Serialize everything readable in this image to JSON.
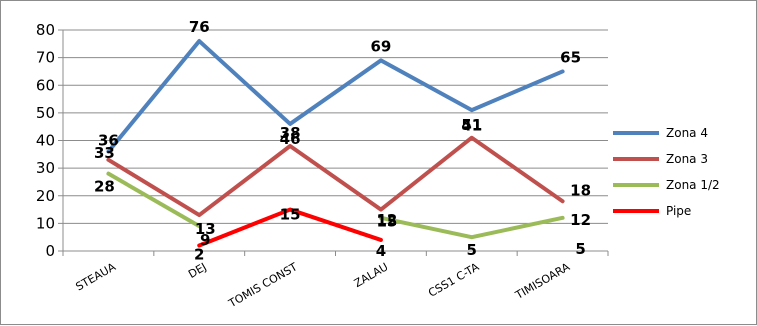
{
  "chart_data": {
    "type": "line",
    "categories": [
      "STEAUA",
      "DEJ",
      "TOMIS CONST",
      "ZALAU",
      "CSS1 C-TA",
      "TIMISOARA"
    ],
    "ylim": [
      0,
      80
    ],
    "yticks": [
      0,
      10,
      20,
      30,
      40,
      50,
      60,
      70,
      80
    ],
    "grid": true,
    "legend_position": "right",
    "series": [
      {
        "name": "Zona 4",
        "color": "#4f81bd",
        "values": [
          36,
          76,
          46,
          69,
          51,
          65
        ]
      },
      {
        "name": "Zona 3",
        "color": "#c0504d",
        "values": [
          33,
          13,
          38,
          15,
          41,
          18
        ]
      },
      {
        "name": "Zona 1/2",
        "color": "#9bbb59",
        "values": [
          28,
          9,
          null,
          12,
          5,
          12
        ]
      },
      {
        "name": "Pipe",
        "color": "#ff0000",
        "values": [
          null,
          2,
          15,
          4,
          null,
          5
        ]
      }
    ]
  }
}
